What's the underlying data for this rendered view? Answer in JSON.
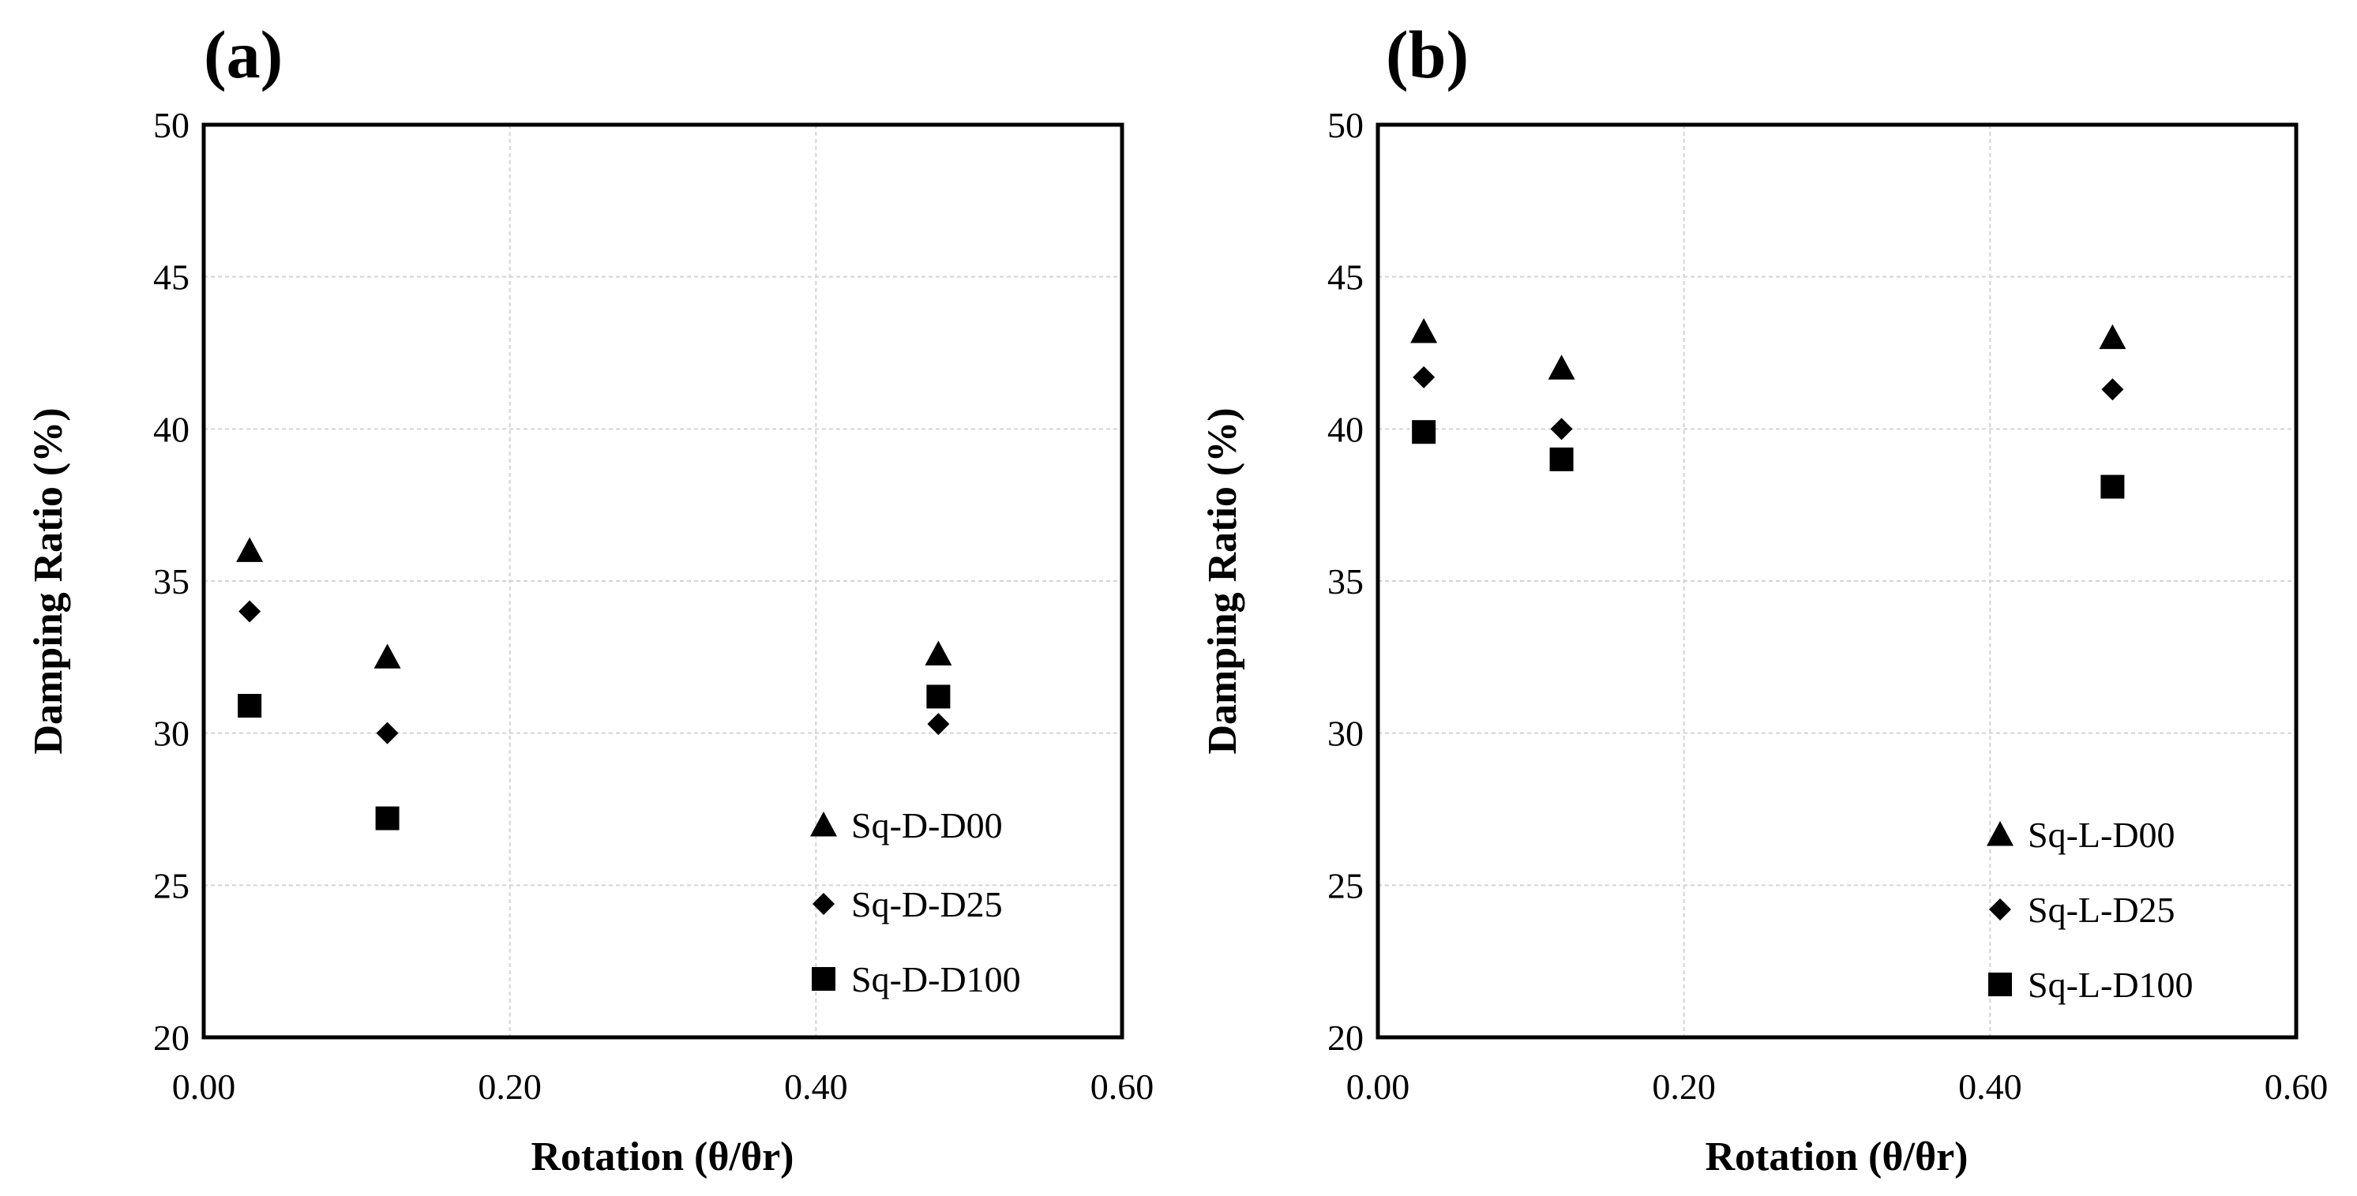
{
  "chart_data": [
    {
      "panel_label": "(a)",
      "type": "scatter",
      "xlabel": "Rotation (θ/θr)",
      "ylabel": "Damping Ratio (%)",
      "xlim": [
        0,
        0.6
      ],
      "ylim": [
        20,
        50
      ],
      "xticks": [
        "0.00",
        "0.20",
        "0.40",
        "0.60"
      ],
      "yticks": [
        "20",
        "25",
        "30",
        "35",
        "40",
        "45",
        "50"
      ],
      "grid": true,
      "legend_position": "bottom-right",
      "series": [
        {
          "name": "Sq-D-D00",
          "marker": "triangle",
          "x": [
            0.03,
            0.12,
            0.48
          ],
          "y": [
            36.0,
            32.5,
            32.6
          ]
        },
        {
          "name": "Sq-D-D25",
          "marker": "diamond",
          "x": [
            0.03,
            0.12,
            0.48
          ],
          "y": [
            34.0,
            30.0,
            30.3
          ]
        },
        {
          "name": "Sq-D-D100",
          "marker": "square",
          "x": [
            0.03,
            0.12,
            0.48
          ],
          "y": [
            30.9,
            27.2,
            31.2
          ]
        }
      ]
    },
    {
      "panel_label": "(b)",
      "type": "scatter",
      "xlabel": "Rotation (θ/θr)",
      "ylabel": "Damping Ratio (%)",
      "xlim": [
        0,
        0.6
      ],
      "ylim": [
        20,
        50
      ],
      "xticks": [
        "0.00",
        "0.20",
        "0.40",
        "0.60"
      ],
      "yticks": [
        "20",
        "25",
        "30",
        "35",
        "40",
        "45",
        "50"
      ],
      "grid": true,
      "legend_position": "bottom-right",
      "series": [
        {
          "name": "Sq-L-D00",
          "marker": "triangle",
          "x": [
            0.03,
            0.12,
            0.48
          ],
          "y": [
            43.2,
            42.0,
            43.0
          ]
        },
        {
          "name": "Sq-L-D25",
          "marker": "diamond",
          "x": [
            0.03,
            0.12,
            0.48
          ],
          "y": [
            41.7,
            40.0,
            41.3
          ]
        },
        {
          "name": "Sq-L-D100",
          "marker": "square",
          "x": [
            0.03,
            0.12,
            0.48
          ],
          "y": [
            39.9,
            39.0,
            38.1
          ]
        }
      ]
    }
  ]
}
